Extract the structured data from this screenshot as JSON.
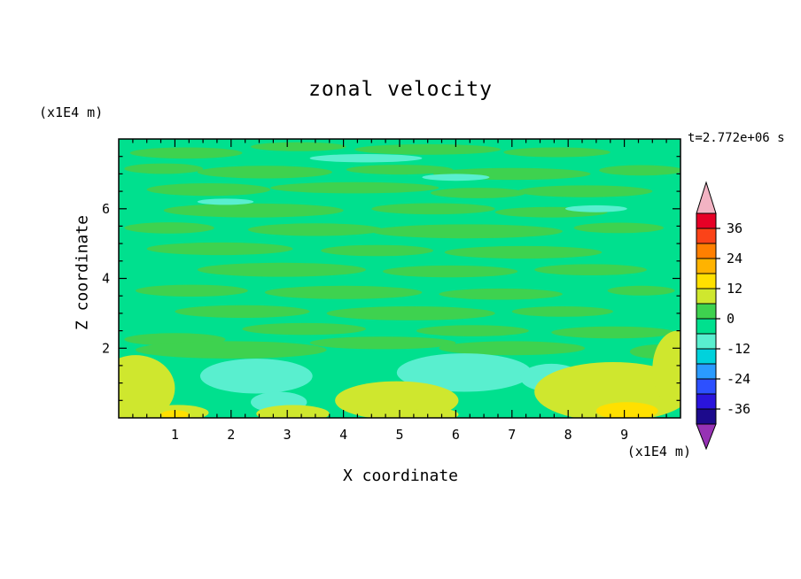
{
  "chart_data": {
    "type": "heatmap",
    "title": "zonal velocity",
    "time": "t=2.772e+06 s",
    "xlabel": "X coordinate",
    "x_unit": "(x1E4 m)",
    "ylabel": "Z coordinate",
    "y_unit": "(x1E4 m)",
    "xlim": [
      0,
      10
    ],
    "ylim": [
      0,
      8
    ],
    "x_major_ticks": [
      1,
      2,
      3,
      4,
      5,
      6,
      7,
      8,
      9
    ],
    "x_minor_step": 0.25,
    "y_major_ticks": [
      2,
      4,
      6
    ],
    "y_minor_step": 0.5,
    "contour_interval": 6,
    "base_band": -6,
    "colorbar": {
      "tick_labels": [
        36,
        24,
        12,
        0,
        -12,
        -24,
        -36
      ],
      "over_color": "#f2b3c3",
      "under_color": "#9632b4",
      "segments": [
        {
          "min": 36,
          "max": 42,
          "color": "#e60026"
        },
        {
          "min": 30,
          "max": 36,
          "color": "#fb4318"
        },
        {
          "min": 24,
          "max": 30,
          "color": "#ff7f00"
        },
        {
          "min": 18,
          "max": 24,
          "color": "#ffb300"
        },
        {
          "min": 12,
          "max": 18,
          "color": "#ffe000"
        },
        {
          "min": 6,
          "max": 12,
          "color": "#cfe72e"
        },
        {
          "min": 0,
          "max": 6,
          "color": "#3ed24f"
        },
        {
          "min": -6,
          "max": 0,
          "color": "#00e08e"
        },
        {
          "min": -12,
          "max": -6,
          "color": "#59efcf"
        },
        {
          "min": -18,
          "max": -12,
          "color": "#00d2dc"
        },
        {
          "min": -24,
          "max": -18,
          "color": "#2a9bff"
        },
        {
          "min": -30,
          "max": -24,
          "color": "#2d50ff"
        },
        {
          "min": -36,
          "max": -30,
          "color": "#2a14dc"
        },
        {
          "min": -42,
          "max": -36,
          "color": "#1c0a8c"
        }
      ]
    },
    "features_format": [
      "x",
      "z",
      "rx",
      "rz",
      "band_min"
    ],
    "features": [
      [
        1.2,
        7.6,
        1.0,
        0.16,
        0
      ],
      [
        3.2,
        7.78,
        0.85,
        0.13,
        0
      ],
      [
        5.5,
        7.7,
        1.3,
        0.15,
        0
      ],
      [
        7.8,
        7.62,
        0.95,
        0.14,
        0
      ],
      [
        0.8,
        7.15,
        0.7,
        0.15,
        0
      ],
      [
        2.6,
        7.05,
        1.2,
        0.18,
        0
      ],
      [
        5.0,
        7.12,
        0.95,
        0.14,
        0
      ],
      [
        7.0,
        7.0,
        1.4,
        0.17,
        0
      ],
      [
        9.3,
        7.1,
        0.75,
        0.15,
        0
      ],
      [
        1.6,
        6.55,
        1.1,
        0.18,
        0
      ],
      [
        4.2,
        6.6,
        1.5,
        0.16,
        0
      ],
      [
        6.4,
        6.45,
        0.85,
        0.15,
        0
      ],
      [
        8.3,
        6.5,
        1.2,
        0.17,
        0
      ],
      [
        2.4,
        5.95,
        1.6,
        0.2,
        0
      ],
      [
        5.6,
        6.0,
        1.1,
        0.16,
        0
      ],
      [
        7.7,
        5.9,
        1.0,
        0.15,
        0
      ],
      [
        0.9,
        5.45,
        0.8,
        0.16,
        0
      ],
      [
        3.5,
        5.4,
        1.2,
        0.18,
        0
      ],
      [
        6.2,
        5.35,
        1.7,
        0.2,
        0
      ],
      [
        8.9,
        5.45,
        0.8,
        0.15,
        0
      ],
      [
        1.8,
        4.85,
        1.3,
        0.18,
        0
      ],
      [
        4.6,
        4.8,
        1.0,
        0.16,
        0
      ],
      [
        7.2,
        4.75,
        1.4,
        0.18,
        0
      ],
      [
        2.9,
        4.25,
        1.5,
        0.2,
        0
      ],
      [
        5.9,
        4.2,
        1.2,
        0.17,
        0
      ],
      [
        8.4,
        4.25,
        1.0,
        0.16,
        0
      ],
      [
        1.3,
        3.65,
        1.0,
        0.17,
        0
      ],
      [
        4.0,
        3.6,
        1.4,
        0.19,
        0
      ],
      [
        6.8,
        3.55,
        1.1,
        0.16,
        0
      ],
      [
        9.3,
        3.65,
        0.6,
        0.14,
        0
      ],
      [
        2.2,
        3.05,
        1.2,
        0.18,
        0
      ],
      [
        5.2,
        3.0,
        1.5,
        0.2,
        0
      ],
      [
        7.9,
        3.05,
        0.9,
        0.15,
        0
      ],
      [
        3.3,
        2.55,
        1.1,
        0.17,
        0
      ],
      [
        6.3,
        2.5,
        1.0,
        0.16,
        0
      ],
      [
        1.0,
        2.25,
        0.9,
        0.18,
        0
      ],
      [
        8.8,
        2.45,
        1.1,
        0.17,
        0
      ],
      [
        4.7,
        2.15,
        1.3,
        0.18,
        0
      ],
      [
        2.0,
        1.95,
        1.7,
        0.25,
        0
      ],
      [
        7.0,
        2.0,
        1.3,
        0.2,
        0
      ],
      [
        9.6,
        1.9,
        0.5,
        0.2,
        0
      ],
      [
        4.4,
        7.45,
        1.0,
        0.12,
        -12
      ],
      [
        6.0,
        6.9,
        0.6,
        0.1,
        -12
      ],
      [
        1.9,
        6.2,
        0.5,
        0.09,
        -12
      ],
      [
        8.5,
        6.0,
        0.55,
        0.1,
        -12
      ],
      [
        2.45,
        1.2,
        1.0,
        0.5,
        -12
      ],
      [
        6.15,
        1.3,
        1.2,
        0.55,
        -12
      ],
      [
        7.7,
        1.15,
        0.55,
        0.4,
        -12
      ],
      [
        2.85,
        0.45,
        0.5,
        0.3,
        -12
      ],
      [
        0.3,
        0.85,
        0.7,
        0.95,
        6
      ],
      [
        1.05,
        0.15,
        0.55,
        0.22,
        6
      ],
      [
        3.1,
        0.12,
        0.65,
        0.25,
        6
      ],
      [
        4.95,
        0.5,
        1.1,
        0.55,
        6
      ],
      [
        5.6,
        0.1,
        0.45,
        0.18,
        6
      ],
      [
        8.8,
        0.75,
        1.4,
        0.85,
        6
      ],
      [
        9.95,
        1.4,
        0.45,
        1.1,
        6
      ],
      [
        9.05,
        0.2,
        0.55,
        0.25,
        12
      ],
      [
        1.0,
        0.1,
        0.25,
        0.12,
        12
      ]
    ]
  }
}
